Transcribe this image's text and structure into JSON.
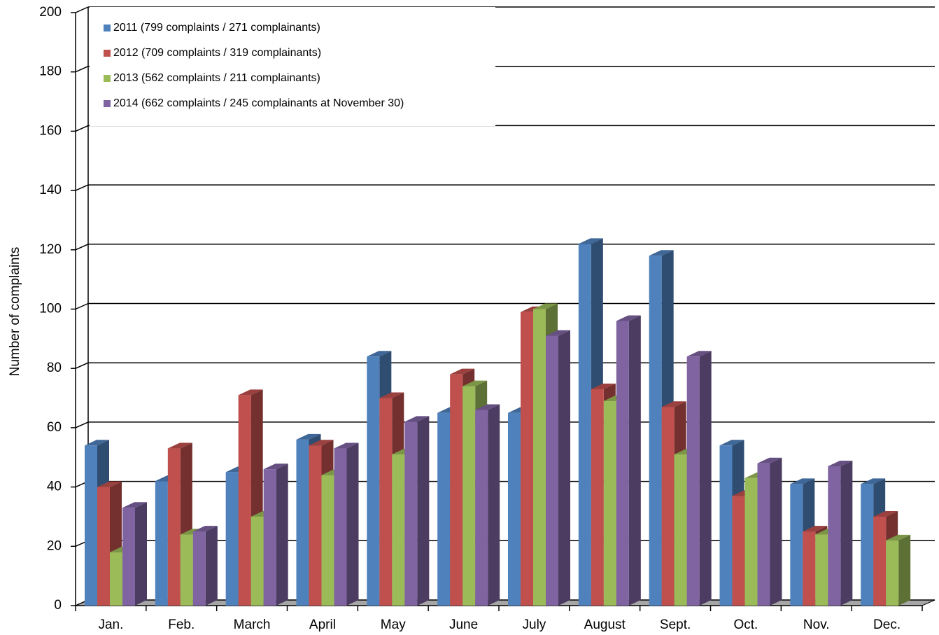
{
  "chart_data": {
    "type": "bar3d",
    "y_label": "Number of complaints",
    "categories": [
      "Jan.",
      "Feb.",
      "March",
      "April",
      "May",
      "June",
      "July",
      "August",
      "Sept.",
      "Oct.",
      "Nov.",
      "Dec."
    ],
    "series": [
      {
        "name": "2011 (799 complaints / 271 complainants)",
        "color": "#4f81bd",
        "values": [
          54,
          42,
          45,
          56,
          84,
          65,
          65,
          122,
          118,
          54,
          41,
          41
        ]
      },
      {
        "name": "2012 (709 complaints / 319 complainants)",
        "color": "#c0504d",
        "values": [
          40,
          53,
          71,
          54,
          70,
          78,
          99,
          73,
          67,
          37,
          25,
          30
        ]
      },
      {
        "name": "2013 (562 complaints / 211 complainants)",
        "color": "#9bbb59",
        "values": [
          18,
          24,
          30,
          44,
          51,
          74,
          100,
          69,
          51,
          43,
          24,
          22
        ]
      },
      {
        "name": "2014 (662 complaints / 245 complainants at November 30)",
        "color": "#8064a2",
        "values": [
          33,
          25,
          46,
          53,
          62,
          66,
          91,
          96,
          84,
          48,
          47,
          null
        ]
      }
    ],
    "ylim": [
      0,
      200
    ],
    "yticks": [
      0,
      20,
      40,
      60,
      80,
      100,
      120,
      140,
      160,
      180,
      200
    ],
    "grid": true
  }
}
